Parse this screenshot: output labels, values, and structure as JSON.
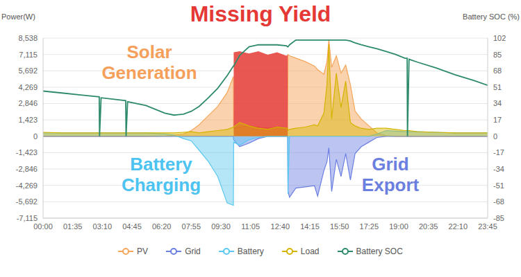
{
  "chart_data": {
    "type": "area",
    "title": "Missing Yield",
    "y_label": "Power(W)",
    "y2_label": "Battery SOC (%)",
    "x": [
      0,
      60,
      120,
      180,
      181,
      186,
      265,
      266,
      271,
      330,
      390,
      420,
      450,
      475,
      500,
      530,
      560,
      590,
      610,
      611,
      630,
      660,
      690,
      720,
      750,
      780,
      784,
      785,
      790,
      810,
      840,
      870,
      880,
      900,
      910,
      916,
      925,
      940,
      955,
      970,
      985,
      1000,
      1020,
      1045,
      1070,
      1100,
      1130,
      1160,
      1167,
      1168,
      1173,
      1200,
      1260,
      1320,
      1380,
      1425
    ],
    "xlim": [
      0,
      1425
    ],
    "xticks": [
      {
        "value": 0,
        "label": "00:00"
      },
      {
        "value": 95,
        "label": "01:35"
      },
      {
        "value": 190,
        "label": "03:10"
      },
      {
        "value": 285,
        "label": "04:45"
      },
      {
        "value": 380,
        "label": "06:20"
      },
      {
        "value": 475,
        "label": "07:55"
      },
      {
        "value": 570,
        "label": "09:30"
      },
      {
        "value": 665,
        "label": "11:05"
      },
      {
        "value": 760,
        "label": "12:40"
      },
      {
        "value": 855,
        "label": "14:15"
      },
      {
        "value": 950,
        "label": "15:50"
      },
      {
        "value": 1045,
        "label": "17:25"
      },
      {
        "value": 1140,
        "label": "19:00"
      },
      {
        "value": 1235,
        "label": "20:35"
      },
      {
        "value": 1330,
        "label": "22:10"
      },
      {
        "value": 1425,
        "label": "23:45"
      }
    ],
    "ylim": [
      -7115,
      8538
    ],
    "yticks": [
      {
        "value": -7115,
        "label": "-7,115"
      },
      {
        "value": -5692,
        "label": "-5,692"
      },
      {
        "value": -4269,
        "label": "-4,269"
      },
      {
        "value": -2846,
        "label": "-2,846"
      },
      {
        "value": -1423,
        "label": "-1,423"
      },
      0,
      {
        "value": 1423,
        "label": "1,423"
      },
      {
        "value": 2846,
        "label": "2,846"
      },
      {
        "value": 4269,
        "label": "4,269"
      },
      {
        "value": 5692,
        "label": "5,692"
      },
      {
        "value": 7115,
        "label": "7,115"
      },
      {
        "value": 8538,
        "label": "8,538"
      }
    ],
    "y2lim": [
      -85,
      102
    ],
    "y2ticks": [
      -85,
      -68,
      -51,
      -34,
      -17,
      0,
      17,
      34,
      51,
      68,
      85,
      102
    ],
    "grid": true,
    "legend": "bottom",
    "series": [
      {
        "name": "PV",
        "type": "area",
        "color": "#f5a65b",
        "values": [
          0,
          0,
          0,
          0,
          0,
          0,
          0,
          0,
          0,
          0,
          30,
          100,
          200,
          500,
          1000,
          1800,
          2600,
          3800,
          5200,
          700,
          800,
          900,
          800,
          700,
          800,
          700,
          700,
          7100,
          7000,
          6800,
          6500,
          6100,
          5800,
          5400,
          6500,
          8400,
          6000,
          7000,
          5500,
          6200,
          4500,
          2200,
          1500,
          900,
          300,
          50,
          0,
          0,
          0,
          0,
          0,
          0,
          0,
          0,
          0,
          0
        ]
      },
      {
        "name": "Grid",
        "type": "area",
        "color": "#6b7fe0",
        "values": [
          0,
          0,
          0,
          0,
          0,
          0,
          0,
          0,
          0,
          0,
          0,
          0,
          0,
          0,
          0,
          0,
          0,
          0,
          0,
          -300,
          -900,
          -600,
          -200,
          0,
          0,
          0,
          0,
          -4800,
          -5300,
          -4500,
          -4400,
          -4300,
          -5200,
          -3000,
          -2200,
          -1000,
          -4800,
          -2000,
          -3500,
          -1500,
          -3800,
          -1500,
          -900,
          -500,
          -100,
          0,
          0,
          0,
          0,
          0,
          0,
          0,
          0,
          0,
          0,
          0
        ]
      },
      {
        "name": "Battery",
        "type": "area",
        "color": "#5ac8f0",
        "values": [
          300,
          300,
          300,
          300,
          300,
          300,
          300,
          300,
          300,
          300,
          200,
          100,
          -200,
          -400,
          -1200,
          -2200,
          -3500,
          -5800,
          -6000,
          -500,
          -800,
          -300,
          -100,
          0,
          0,
          0,
          0,
          -5000,
          0,
          0,
          0,
          0,
          0,
          0,
          0,
          0,
          0,
          0,
          0,
          0,
          0,
          0,
          0,
          0,
          200,
          500,
          450,
          400,
          400,
          400,
          400,
          400,
          350,
          300,
          300,
          300
        ]
      },
      {
        "name": "Load",
        "type": "area",
        "color": "#d4b400",
        "values": [
          350,
          300,
          300,
          300,
          300,
          300,
          300,
          300,
          300,
          300,
          300,
          300,
          350,
          400,
          300,
          400,
          500,
          600,
          800,
          800,
          1200,
          900,
          700,
          600,
          800,
          700,
          700,
          500,
          600,
          700,
          800,
          1000,
          900,
          2000,
          4500,
          8000,
          1500,
          5500,
          2500,
          4800,
          1200,
          900,
          700,
          600,
          700,
          700,
          600,
          500,
          500,
          500,
          500,
          400,
          350,
          300,
          300,
          300
        ]
      },
      {
        "name": "Battery SOC",
        "type": "line",
        "axis": "y2",
        "color": "#2e8b6a",
        "values": [
          47,
          45,
          43,
          41,
          0,
          40,
          37,
          0,
          36,
          32,
          24,
          22,
          23,
          26,
          31,
          40,
          50,
          63,
          73,
          73,
          84,
          93,
          95,
          95,
          95,
          94,
          93,
          93,
          95,
          100,
          100,
          100,
          100,
          100,
          100,
          100,
          100,
          100,
          100,
          100,
          99,
          97,
          95,
          93,
          91,
          88,
          85,
          81,
          81,
          0,
          80,
          77,
          71,
          64,
          58,
          53
        ]
      }
    ],
    "missing_yield": {
      "color": "#e53935",
      "values": [
        null,
        null,
        null,
        null,
        null,
        null,
        null,
        null,
        null,
        null,
        null,
        null,
        null,
        null,
        null,
        null,
        null,
        null,
        null,
        7300,
        7400,
        7200,
        7400,
        7100,
        7300,
        7000,
        7100,
        null,
        null,
        null,
        null,
        null,
        null,
        null,
        null,
        null,
        null,
        null,
        null,
        null,
        null,
        null,
        null,
        null,
        null,
        null,
        null,
        null,
        null,
        null,
        null,
        null,
        null,
        null,
        null,
        null
      ]
    },
    "annotations": [
      {
        "text": "Solar Generation",
        "color": "#f5a05a"
      },
      {
        "text": "Battery Charging",
        "color": "#4cc3f0"
      },
      {
        "text": "Grid Export",
        "color": "#6b7fe0"
      }
    ]
  }
}
